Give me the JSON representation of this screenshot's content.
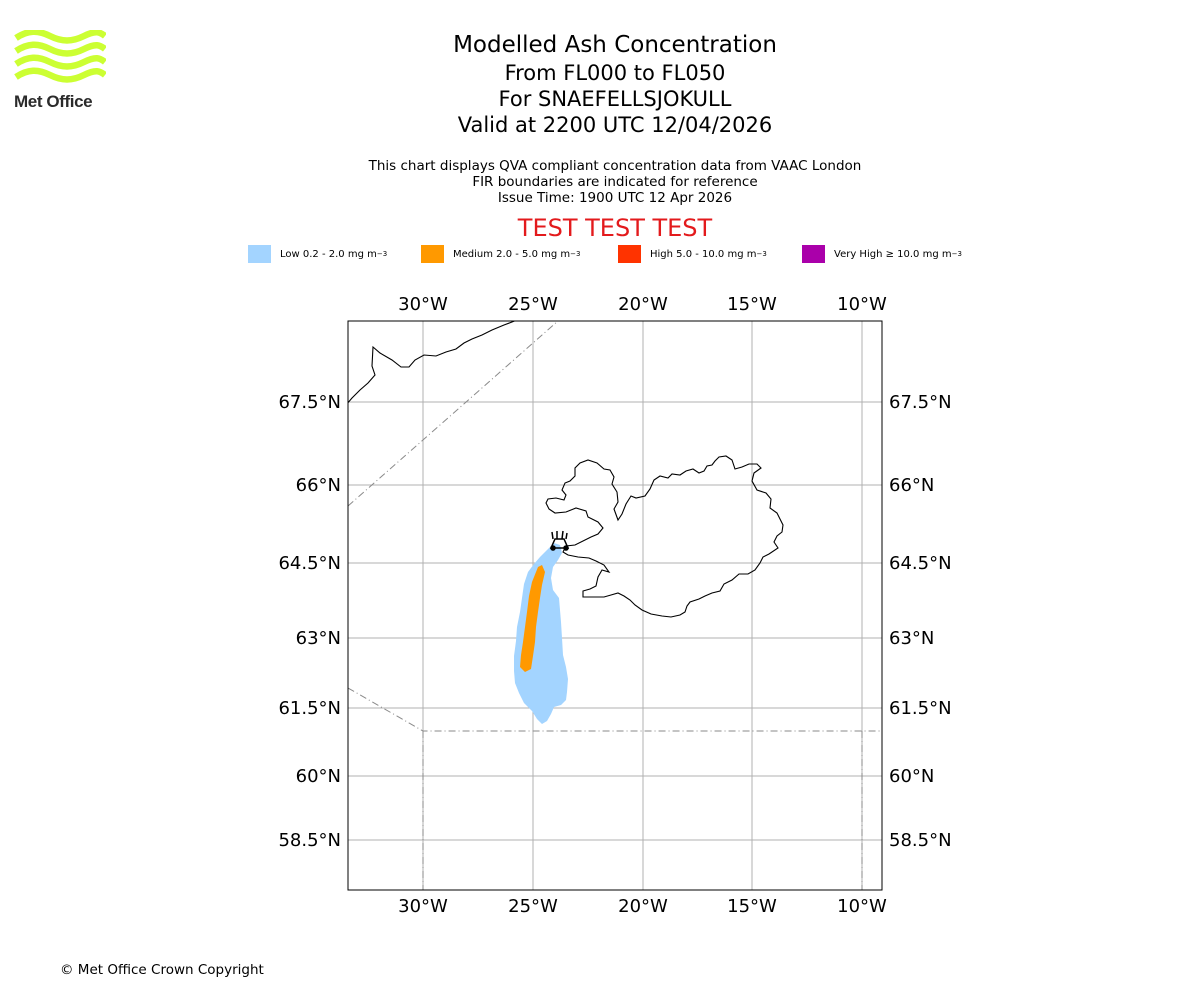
{
  "logo": {
    "text": "Met Office",
    "icon": "met-office-waves-icon",
    "color": "#ccff33"
  },
  "title": {
    "line1": "Modelled Ash Concentration",
    "line2": "From FL000 to FL050",
    "line3": "For SNAEFELLSJOKULL",
    "line4": "Valid at 2200 UTC 12/04/2026"
  },
  "subtitle": {
    "line1": "This chart displays QVA compliant concentration data from VAAC London",
    "line2": "FIR boundaries are indicated for reference",
    "line3": "Issue Time: 1900 UTC 12 Apr 2026"
  },
  "test_banner": "TEST TEST TEST",
  "legend": [
    {
      "prefix": "Low 0.2 - 2.0 mg m",
      "exp": "−3",
      "color": "#a3d4ff"
    },
    {
      "prefix": "Medium 2.0 - 5.0 mg m",
      "exp": "−3",
      "color": "#ff9900"
    },
    {
      "prefix": "High 5.0 - 10.0 mg m",
      "exp": "−3",
      "color": "#ff3300"
    },
    {
      "prefix": "Very High ≥ 10.0 mg m",
      "exp": "−3",
      "color": "#aa00aa"
    }
  ],
  "map": {
    "lon_labels": [
      "30°W",
      "25°W",
      "20°W",
      "15°W",
      "10°W"
    ],
    "lat_labels": [
      "67.5°N",
      "66°N",
      "64.5°N",
      "63°N",
      "61.5°N",
      "60°N",
      "58.5°N"
    ],
    "volcano": "SNAEFELLSJOKULL",
    "volcano_icon": "volcano-icon"
  },
  "copyright": "© Met Office Crown Copyright"
}
